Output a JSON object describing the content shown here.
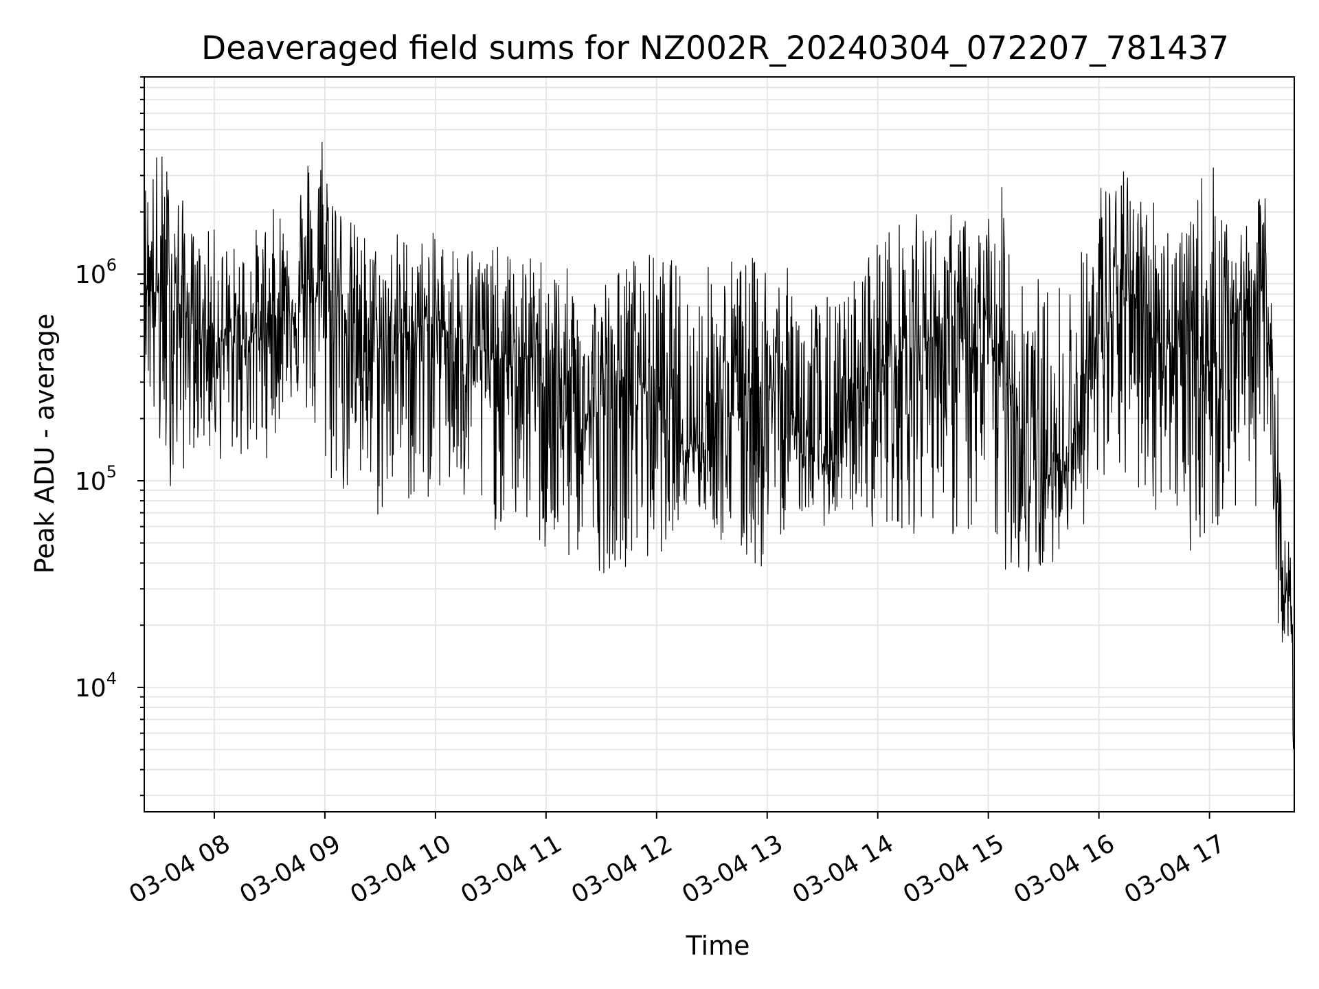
{
  "chart_data": {
    "type": "line",
    "title": "Deaveraged field sums for NZ002R_20240304_072207_781437",
    "xlabel": "Time",
    "ylabel": "Peak ADU - average",
    "y_scale": "log",
    "ylim": [
      2500,
      9000000
    ],
    "xlim": [
      "2024-03-04 07:22",
      "2024-03-04 17:46"
    ],
    "x_ticks": [
      {
        "label": "03-04 08",
        "time": "2024-03-04 08:00"
      },
      {
        "label": "03-04 09",
        "time": "2024-03-04 09:00"
      },
      {
        "label": "03-04 10",
        "time": "2024-03-04 10:00"
      },
      {
        "label": "03-04 11",
        "time": "2024-03-04 11:00"
      },
      {
        "label": "03-04 12",
        "time": "2024-03-04 12:00"
      },
      {
        "label": "03-04 13",
        "time": "2024-03-04 13:00"
      },
      {
        "label": "03-04 14",
        "time": "2024-03-04 14:00"
      },
      {
        "label": "03-04 15",
        "time": "2024-03-04 15:00"
      },
      {
        "label": "03-04 16",
        "time": "2024-03-04 16:00"
      },
      {
        "label": "03-04 17",
        "time": "2024-03-04 17:00"
      }
    ],
    "y_ticks": [
      {
        "base": "10",
        "exp": "4",
        "value": 10000
      },
      {
        "base": "10",
        "exp": "5",
        "value": 100000
      },
      {
        "base": "10",
        "exp": "6",
        "value": 1000000
      }
    ],
    "grid": "on (major and minor)",
    "line_color": "#000000",
    "grid_color": "#e6e6e6",
    "series": [
      {
        "x": [
          "2024-03-04 07:22",
          "2024-03-04 07:30",
          "2024-03-04 07:40",
          "2024-03-04 07:50",
          "2024-03-04 08:00",
          "2024-03-04 08:10",
          "2024-03-04 08:20",
          "2024-03-04 08:30",
          "2024-03-04 08:40",
          "2024-03-04 08:50",
          "2024-03-04 09:00",
          "2024-03-04 09:10",
          "2024-03-04 09:20",
          "2024-03-04 09:30",
          "2024-03-04 09:40",
          "2024-03-04 09:50",
          "2024-03-04 10:00",
          "2024-03-04 10:10",
          "2024-03-04 10:20",
          "2024-03-04 10:30",
          "2024-03-04 10:40",
          "2024-03-04 10:50",
          "2024-03-04 11:00",
          "2024-03-04 11:10",
          "2024-03-04 11:20",
          "2024-03-04 11:30",
          "2024-03-04 11:40",
          "2024-03-04 11:50",
          "2024-03-04 12:00",
          "2024-03-04 12:10",
          "2024-03-04 12:20",
          "2024-03-04 12:30",
          "2024-03-04 12:40",
          "2024-03-04 12:50",
          "2024-03-04 13:00",
          "2024-03-04 13:10",
          "2024-03-04 13:20",
          "2024-03-04 13:30",
          "2024-03-04 13:40",
          "2024-03-04 13:50",
          "2024-03-04 14:00",
          "2024-03-04 14:10",
          "2024-03-04 14:20",
          "2024-03-04 14:30",
          "2024-03-04 14:40",
          "2024-03-04 14:50",
          "2024-03-04 15:00",
          "2024-03-04 15:10",
          "2024-03-04 15:20",
          "2024-03-04 15:30",
          "2024-03-04 15:40",
          "2024-03-04 15:50",
          "2024-03-04 16:00",
          "2024-03-04 16:10",
          "2024-03-04 16:20",
          "2024-03-04 16:30",
          "2024-03-04 16:40",
          "2024-03-04 16:50",
          "2024-03-04 17:00",
          "2024-03-04 17:10",
          "2024-03-04 17:20",
          "2024-03-04 17:30",
          "2024-03-04 17:35",
          "2024-03-04 17:38",
          "2024-03-04 17:41",
          "2024-03-04 17:44",
          "2024-03-04 17:46"
        ],
        "y": [
          1000000,
          800000,
          700000,
          550000,
          500000,
          450000,
          500000,
          600000,
          700000,
          750000,
          800000,
          700000,
          500000,
          450000,
          500000,
          550000,
          600000,
          500000,
          450000,
          400000,
          350000,
          400000,
          380000,
          250000,
          200000,
          220000,
          300000,
          320000,
          250000,
          180000,
          150000,
          160000,
          220000,
          300000,
          280000,
          250000,
          150000,
          120000,
          140000,
          250000,
          350000,
          400000,
          450000,
          500000,
          550000,
          400000,
          450000,
          350000,
          150000,
          100000,
          120000,
          200000,
          500000,
          700000,
          800000,
          600000,
          450000,
          400000,
          350000,
          600000,
          700000,
          900000,
          200000,
          40000,
          30000,
          25000,
          3500
        ],
        "y_high": [
          3000000,
          4500000,
          2800000,
          1500000,
          1700000,
          1400000,
          1600000,
          2000000,
          2500000,
          4000000,
          6500000,
          2000000,
          1700000,
          1400000,
          1700000,
          1500000,
          1600000,
          1500000,
          1500000,
          1400000,
          1300000,
          1200000,
          1300000,
          1100000,
          900000,
          1000000,
          1100000,
          1300000,
          1300000,
          1200000,
          1000000,
          1200000,
          1300000,
          1200000,
          1300000,
          1100000,
          900000,
          800000,
          800000,
          1100000,
          1700000,
          1800000,
          2000000,
          1800000,
          2000000,
          1900000,
          2100000,
          2900000,
          1500000,
          900000,
          1000000,
          1300000,
          3000000,
          3500000,
          2800000,
          2500000,
          2000000,
          1800000,
          4800000,
          1600000,
          1700000,
          2700000,
          1200000,
          200000,
          60000,
          50000,
          30000
        ],
        "y_low": [
          350000,
          100000,
          90000,
          150000,
          120000,
          130000,
          120000,
          130000,
          250000,
          200000,
          95000,
          80000,
          70000,
          60000,
          90000,
          65000,
          90000,
          70000,
          60000,
          55000,
          60000,
          55000,
          38000,
          35000,
          45000,
          35000,
          40000,
          35000,
          40000,
          60000,
          70000,
          60000,
          38000,
          36000,
          35000,
          60000,
          70000,
          60000,
          65000,
          70000,
          55000,
          60000,
          55000,
          65000,
          50000,
          50000,
          45000,
          35000,
          32000,
          33000,
          50000,
          60000,
          60000,
          100000,
          80000,
          70000,
          70000,
          45000,
          50000,
          60000,
          70000,
          80000,
          50000,
          15000,
          18000,
          15000,
          3500
        ]
      }
    ]
  }
}
